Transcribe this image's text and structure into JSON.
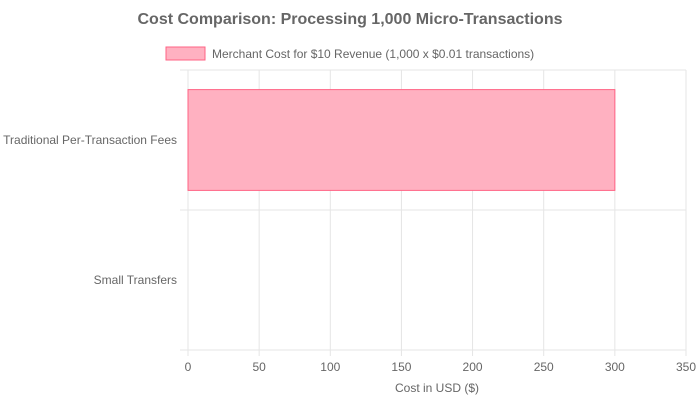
{
  "chart_data": {
    "type": "bar",
    "orientation": "horizontal",
    "title": "Cost Comparison: Processing 1,000 Micro-Transactions",
    "xlabel": "Cost in USD ($)",
    "ylabel": "",
    "categories": [
      "Traditional Per-Transaction Fees",
      "Small Transfers"
    ],
    "series": [
      {
        "name": "Merchant Cost for $10 Revenue (1,000 x $0.01 transactions)",
        "values": [
          300,
          0
        ],
        "color": "#ffb1c1",
        "border_color": "#ff6384"
      }
    ],
    "xlim": [
      0,
      350
    ],
    "xticks": [
      0,
      50,
      100,
      150,
      200,
      250,
      300,
      350
    ],
    "grid": true,
    "legend_position": "top"
  }
}
